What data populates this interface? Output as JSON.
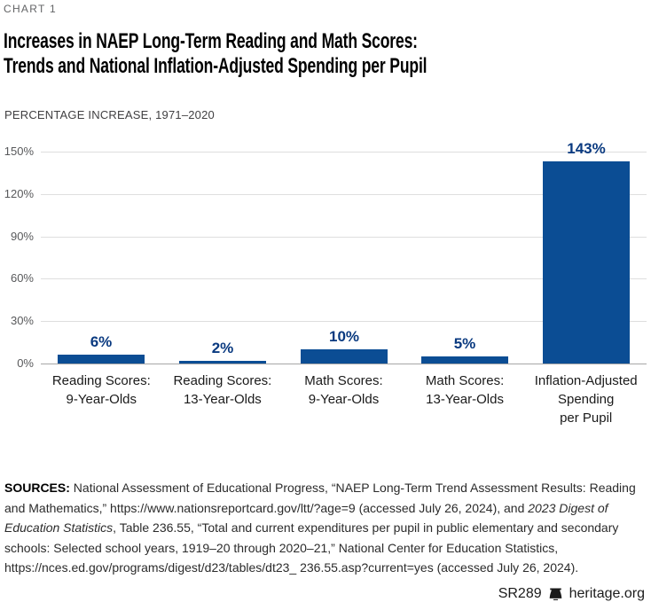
{
  "kicker": "CHART 1",
  "title_lines": [
    "Increases in NAEP Long-Term Reading and Math Scores:",
    "Trends and National Inflation-Adjusted Spending per Pupil"
  ],
  "subtitle": "PERCENTAGE INCREASE, 1971–2020",
  "chart_data": {
    "type": "bar",
    "categories": [
      [
        "Reading Scores:",
        "9-Year-Olds"
      ],
      [
        "Reading Scores:",
        "13-Year-Olds"
      ],
      [
        "Math Scores:",
        "9-Year-Olds"
      ],
      [
        "Math Scores:",
        "13-Year-Olds"
      ],
      [
        "Inflation-Adjusted",
        "Spending",
        "per Pupil"
      ]
    ],
    "values": [
      6,
      2,
      10,
      5,
      143
    ],
    "value_labels": [
      "6%",
      "2%",
      "10%",
      "5%",
      "143%"
    ],
    "title": "Increases in NAEP Long-Term Reading and Math Scores: Trends and National Inflation-Adjusted Spending per Pupil",
    "xlabel": "",
    "ylabel": "Percentage increase, 1971–2020",
    "ylim": [
      0,
      150
    ],
    "yticks": [
      0,
      30,
      60,
      90,
      120,
      150
    ],
    "ytick_labels": [
      "0%",
      "30%",
      "60%",
      "90%",
      "120%",
      "150%"
    ],
    "grid": true,
    "legend": "none",
    "bar_color": "#0b4d94",
    "value_label_color": "#0a3a80",
    "gridline_color": "#dedede",
    "axis_line_color": "#a7a7a7",
    "tick_color": "#58595b"
  },
  "sources": {
    "label": "SOURCES:",
    "segments": [
      {
        "text": " National Assessment of Educational Progress, “NAEP Long-Term Trend Assessment Results: Reading and Mathematics,” https://www.nationsreportcard.gov/ltt/?age=9 (accessed July 26, 2024), and ",
        "italic": false
      },
      {
        "text": "2023 Digest of Education Statistics",
        "italic": true
      },
      {
        "text": ", Table 236.55, “Total and current expenditures per pupil in public elementary and secondary schools: Selected school years, 1919–20 through 2020–21,” National Center for Education Statistics, https://nces.ed.gov/programs/digest/d23/tables/dt23_ 236.55.asp?current=yes (accessed July 26, 2024).",
        "italic": false
      }
    ]
  },
  "footer": {
    "report_id": "SR289",
    "site": "heritage.org",
    "logo_icon": "heritage-bell-icon"
  }
}
